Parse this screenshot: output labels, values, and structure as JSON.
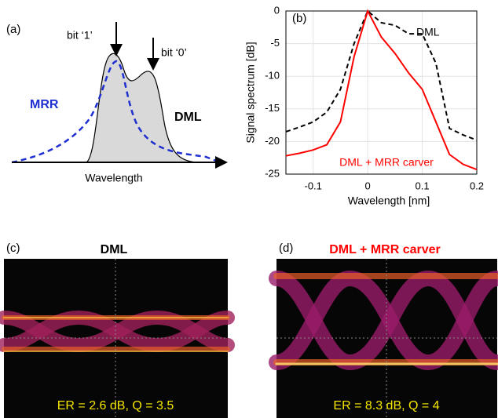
{
  "schematic": {
    "label": "(a)",
    "bit1": "bit ‘1’",
    "bit0": "bit ‘0’",
    "mrr": "MRR",
    "dml": "DML",
    "xlabel": "Wavelength"
  },
  "chart_data": {
    "type": "line",
    "label": "(b)",
    "xlabel": "Wavelength [nm]",
    "ylabel": "Signal spectrum [dB]",
    "x": [
      -0.15,
      -0.125,
      -0.1,
      -0.075,
      -0.05,
      -0.025,
      0,
      0.025,
      0.05,
      0.075,
      0.1,
      0.125,
      0.15,
      0.175,
      0.2
    ],
    "series": [
      {
        "name": "DML",
        "color": "#000000",
        "linestyle": "dashed",
        "values": [
          -18.5,
          -17.8,
          -17,
          -15.5,
          -12,
          -5,
          0,
          -1.8,
          -2.2,
          -3.5,
          -3.5,
          -8,
          -18,
          -19,
          -19.8
        ]
      },
      {
        "name": "DML + MRR carver",
        "color": "#ff0000",
        "linestyle": "solid",
        "values": [
          -22.2,
          -21.8,
          -21.3,
          -20.5,
          -17,
          -7,
          0,
          -4,
          -6.5,
          -9.5,
          -12,
          -17,
          -22,
          -23.5,
          -24.3
        ]
      }
    ],
    "xlim": [
      -0.15,
      0.2
    ],
    "ylim": [
      -25,
      0
    ],
    "xticks": [
      -0.1,
      0,
      0.1,
      0.2
    ],
    "yticks": [
      0,
      -5,
      -10,
      -15,
      -20,
      -25
    ],
    "grid": true
  },
  "eyes": [
    {
      "label": "(c)",
      "title": "DML",
      "caption": "ER = 2.6 dB, Q = 3.5"
    },
    {
      "label": "(d)",
      "title": "DML + MRR carver",
      "caption": "ER = 8.3 dB, Q = 4"
    }
  ]
}
